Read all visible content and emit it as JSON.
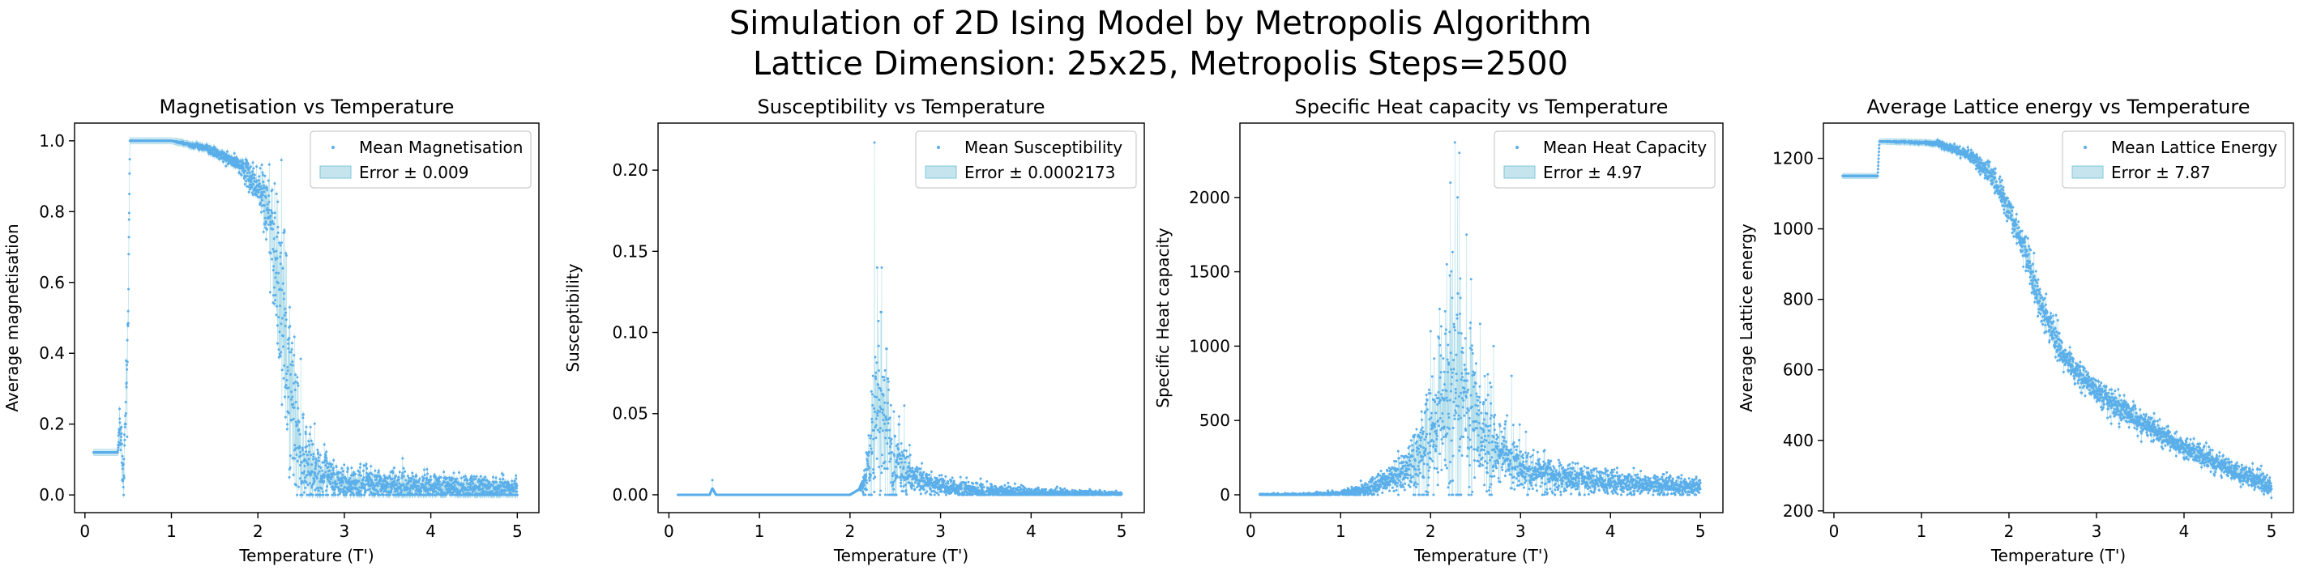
{
  "figure": {
    "title_line1": "Simulation of 2D Ising Model by Metropolis Algorithm",
    "title_line2": "Lattice Dimension: 25x25, Metropolis Steps=2500"
  },
  "colors": {
    "points": "#5aaeea",
    "error_fill": "#add8e6",
    "error_edge": "#7fc8dc"
  },
  "chart_data": [
    {
      "type": "scatter",
      "title": "Magnetisation vs Temperature",
      "xlabel": "Temperature (T')",
      "ylabel": "Average magnetisation",
      "xlim": [
        -0.12,
        5.25
      ],
      "ylim": [
        -0.05,
        1.05
      ],
      "xticks": [
        0,
        1,
        2,
        3,
        4,
        5
      ],
      "yticks": [
        0.0,
        0.2,
        0.4,
        0.6,
        0.8,
        1.0
      ],
      "ytick_labels": [
        "0.0",
        "0.2",
        "0.4",
        "0.6",
        "0.8",
        "1.0"
      ],
      "legend": {
        "position": "top-right",
        "series_label": "Mean Magnetisation",
        "error_label": "Error ± 0.009"
      },
      "error": 0.009,
      "x_range": [
        0.1,
        5.0
      ],
      "x_step": 0.002,
      "series": {
        "name": "Mean Magnetisation",
        "points": [
          [
            0.1,
            0.12
          ],
          [
            0.38,
            0.12
          ],
          [
            0.4,
            0.2
          ],
          [
            0.45,
            0.05
          ],
          [
            0.5,
            0.5
          ],
          [
            0.52,
            1.0
          ],
          [
            1.0,
            1.0
          ],
          [
            1.4,
            0.98
          ],
          [
            1.8,
            0.93
          ],
          [
            2.0,
            0.87
          ],
          [
            2.15,
            0.78
          ],
          [
            2.25,
            0.6
          ],
          [
            2.3,
            0.45
          ],
          [
            2.4,
            0.25
          ],
          [
            2.5,
            0.12
          ],
          [
            2.7,
            0.05
          ],
          [
            3.0,
            0.03
          ],
          [
            4.0,
            0.02
          ],
          [
            5.0,
            0.015
          ]
        ],
        "noise": [
          [
            0.1,
            0.0
          ],
          [
            0.38,
            0.0
          ],
          [
            0.4,
            0.03
          ],
          [
            0.5,
            0.06
          ],
          [
            0.52,
            0.0
          ],
          [
            1.0,
            0.0
          ],
          [
            1.8,
            0.01
          ],
          [
            2.0,
            0.03
          ],
          [
            2.15,
            0.08
          ],
          [
            2.3,
            0.15
          ],
          [
            2.4,
            0.12
          ],
          [
            2.6,
            0.05
          ],
          [
            3.0,
            0.025
          ],
          [
            5.0,
            0.02
          ]
        ]
      }
    },
    {
      "type": "scatter",
      "title": "Susceptibility vs Temperature",
      "xlabel": "Temperature (T')",
      "ylabel": "Susceptibility",
      "xlim": [
        -0.12,
        5.25
      ],
      "ylim": [
        -0.011,
        0.229
      ],
      "xticks": [
        0,
        1,
        2,
        3,
        4,
        5
      ],
      "yticks": [
        0.0,
        0.05,
        0.1,
        0.15,
        0.2
      ],
      "ytick_labels": [
        "0.00",
        "0.05",
        "0.10",
        "0.15",
        "0.20"
      ],
      "legend": {
        "position": "top-right",
        "series_label": "Mean Susceptibility",
        "error_label": "Error ± 0.0002173"
      },
      "error": 0.0002173,
      "x_range": [
        0.1,
        5.0
      ],
      "x_step": 0.002,
      "series": {
        "name": "Mean Susceptibility",
        "points": [
          [
            0.1,
            0.0
          ],
          [
            0.45,
            0.0
          ],
          [
            0.48,
            0.004
          ],
          [
            0.52,
            0.0
          ],
          [
            2.0,
            0.0
          ],
          [
            2.15,
            0.005
          ],
          [
            2.25,
            0.03
          ],
          [
            2.3,
            0.06
          ],
          [
            2.4,
            0.035
          ],
          [
            2.5,
            0.02
          ],
          [
            2.7,
            0.01
          ],
          [
            3.0,
            0.005
          ],
          [
            3.5,
            0.002
          ],
          [
            4.0,
            0.001
          ],
          [
            5.0,
            0.0005
          ]
        ],
        "noise": [
          [
            0.1,
            0.0
          ],
          [
            2.1,
            0.0
          ],
          [
            2.2,
            0.01
          ],
          [
            2.3,
            0.03
          ],
          [
            2.45,
            0.02
          ],
          [
            2.7,
            0.005
          ],
          [
            3.0,
            0.003
          ],
          [
            5.0,
            0.0005
          ]
        ],
        "peaks": [
          [
            2.27,
            0.217
          ],
          [
            2.3,
            0.14
          ],
          [
            2.35,
            0.14
          ],
          [
            2.4,
            0.09
          ],
          [
            2.6,
            0.055
          ],
          [
            0.48,
            0.009
          ]
        ]
      }
    },
    {
      "type": "scatter",
      "title": "Specific Heat capacity vs Temperature",
      "xlabel": "Temperature (T')",
      "ylabel": "Specific Heat capacity",
      "xlim": [
        -0.12,
        5.25
      ],
      "ylim": [
        -120,
        2500
      ],
      "xticks": [
        0,
        1,
        2,
        3,
        4,
        5
      ],
      "yticks": [
        0,
        500,
        1000,
        1500,
        2000
      ],
      "ytick_labels": [
        "0",
        "500",
        "1000",
        "1500",
        "2000"
      ],
      "legend": {
        "position": "top-right",
        "series_label": "Mean Heat Capacity",
        "error_label": "Error ± 4.97"
      },
      "error": 4.97,
      "x_range": [
        0.1,
        5.0
      ],
      "x_step": 0.002,
      "series": {
        "name": "Mean Heat Capacity",
        "points": [
          [
            0.1,
            0
          ],
          [
            0.6,
            0
          ],
          [
            1.0,
            10
          ],
          [
            1.3,
            40
          ],
          [
            1.6,
            110
          ],
          [
            1.8,
            200
          ],
          [
            2.0,
            350
          ],
          [
            2.1,
            500
          ],
          [
            2.2,
            650
          ],
          [
            2.3,
            700
          ],
          [
            2.4,
            600
          ],
          [
            2.5,
            450
          ],
          [
            2.7,
            300
          ],
          [
            3.0,
            180
          ],
          [
            3.5,
            110
          ],
          [
            4.0,
            80
          ],
          [
            5.0,
            50
          ]
        ],
        "noise": [
          [
            0.1,
            3
          ],
          [
            1.0,
            8
          ],
          [
            1.5,
            40
          ],
          [
            1.8,
            100
          ],
          [
            2.0,
            220
          ],
          [
            2.2,
            350
          ],
          [
            2.3,
            420
          ],
          [
            2.5,
            250
          ],
          [
            2.8,
            120
          ],
          [
            3.2,
            60
          ],
          [
            4.0,
            40
          ],
          [
            5.0,
            30
          ]
        ],
        "peaks": [
          [
            2.27,
            2370
          ],
          [
            2.32,
            2300
          ],
          [
            2.22,
            2100
          ],
          [
            2.3,
            2000
          ],
          [
            2.1,
            1250
          ],
          [
            2.18,
            1550
          ],
          [
            2.4,
            1750
          ],
          [
            2.45,
            1450
          ],
          [
            2.0,
            1100
          ],
          [
            2.55,
            1150
          ],
          [
            2.7,
            1000
          ],
          [
            2.9,
            800
          ]
        ]
      }
    },
    {
      "type": "scatter",
      "title": "Average Lattice energy vs Temperature",
      "xlabel": "Temperature (T')",
      "ylabel": "Average Lattice energy",
      "xlim": [
        -0.12,
        5.25
      ],
      "ylim": [
        195,
        1300
      ],
      "xticks": [
        0,
        1,
        2,
        3,
        4,
        5
      ],
      "yticks": [
        200,
        400,
        600,
        800,
        1000,
        1200
      ],
      "ytick_labels": [
        "200",
        "400",
        "600",
        "800",
        "1000",
        "1200"
      ],
      "legend": {
        "position": "top-right",
        "series_label": "Mean Lattice Energy",
        "error_label": "Error ± 7.87"
      },
      "error": 7.87,
      "x_range": [
        0.1,
        5.0
      ],
      "x_step": 0.002,
      "series": {
        "name": "Mean Lattice Energy",
        "points": [
          [
            0.1,
            1150
          ],
          [
            0.5,
            1150
          ],
          [
            0.52,
            1248
          ],
          [
            1.0,
            1245
          ],
          [
            1.2,
            1240
          ],
          [
            1.4,
            1225
          ],
          [
            1.6,
            1200
          ],
          [
            1.8,
            1150
          ],
          [
            2.0,
            1060
          ],
          [
            2.2,
            930
          ],
          [
            2.3,
            830
          ],
          [
            2.4,
            760
          ],
          [
            2.6,
            650
          ],
          [
            2.8,
            590
          ],
          [
            3.0,
            540
          ],
          [
            3.5,
            450
          ],
          [
            4.0,
            380
          ],
          [
            4.5,
            320
          ],
          [
            5.0,
            270
          ]
        ],
        "noise": [
          [
            0.1,
            0
          ],
          [
            0.5,
            0
          ],
          [
            1.0,
            2
          ],
          [
            1.5,
            8
          ],
          [
            2.0,
            20
          ],
          [
            2.3,
            30
          ],
          [
            2.6,
            22
          ],
          [
            3.0,
            18
          ],
          [
            4.0,
            15
          ],
          [
            5.0,
            15
          ]
        ]
      }
    }
  ]
}
